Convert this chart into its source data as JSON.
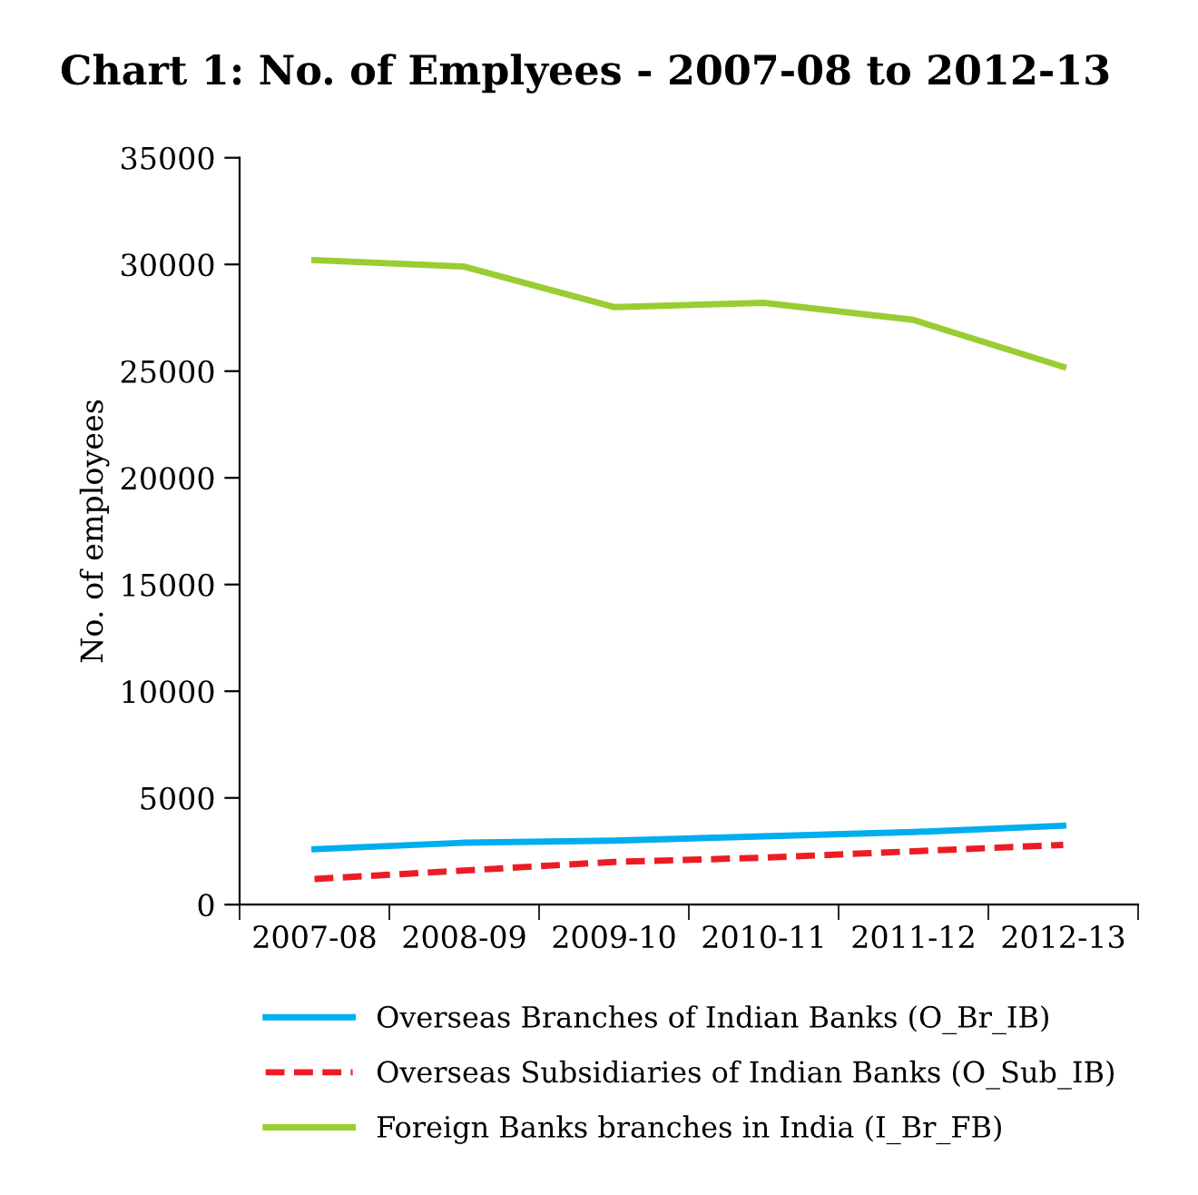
{
  "chart_data": {
    "type": "line",
    "title": "Chart 1: No. of Emplyees - 2007-08 to 2012-13",
    "ylabel": "No. of employees",
    "categories": [
      "2007-08",
      "2008-09",
      "2009-10",
      "2010-11",
      "2011-12",
      "2012-13"
    ],
    "series": [
      {
        "name": "Overseas Branches of Indian Banks (O_Br_IB)",
        "color": "#00aeef",
        "values": [
          2600,
          2900,
          3000,
          3200,
          3400,
          3700
        ],
        "line_style": "solid"
      },
      {
        "name": "Overseas Subsidiaries of Indian Banks (O_Sub_IB)",
        "color": "#ed1c24",
        "values": [
          1200,
          1600,
          2000,
          2200,
          2500,
          2800
        ],
        "line_style": "dashed"
      },
      {
        "name": "Foreign Banks branches in India (I_Br_FB)",
        "color": "#9acd32",
        "values": [
          30200,
          29900,
          28000,
          28200,
          27400,
          25200
        ],
        "line_style": "solid"
      }
    ],
    "ylim": [
      0,
      35000
    ],
    "yticks": [
      0,
      5000,
      10000,
      15000,
      20000,
      25000,
      30000,
      35000
    ],
    "grid": false,
    "legend": "bottom",
    "marker": "none"
  }
}
